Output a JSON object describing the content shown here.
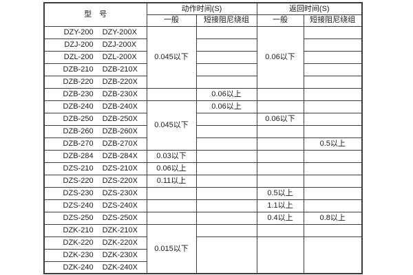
{
  "header": {
    "model": "型　号",
    "action": "动作时间(S)",
    "return": "返回时间(S)",
    "general": "一般",
    "short_damping": "短接阻尼绕组"
  },
  "colors": {
    "border": "#3a3a3a",
    "text": "#1a1a1a",
    "background": "#ffffff"
  },
  "table": {
    "col_names": {
      "ag": "cell-action-general",
      "as": "cell-action-damping",
      "rg": "cell-return-general",
      "rs_": "cell-return-damping"
    },
    "rows": [
      {
        "m": [
          "DZY-200",
          "DZY-200X"
        ],
        "c": [
          {
            "k": "ag",
            "t": "0.045以下",
            "rs": 5
          },
          {
            "k": "as",
            "t": ""
          },
          {
            "k": "rg",
            "t": "0.06以下",
            "rs": 5
          },
          {
            "k": "rs_",
            "t": ""
          }
        ]
      },
      {
        "m": [
          "DZJ-200",
          "DZJ-200X"
        ],
        "c": [
          {
            "k": "as",
            "t": ""
          },
          {
            "k": "rs_",
            "t": ""
          }
        ]
      },
      {
        "m": [
          "DZL-200",
          "DZL-200X"
        ],
        "c": [
          {
            "k": "as",
            "t": ""
          },
          {
            "k": "rs_",
            "t": ""
          }
        ]
      },
      {
        "m": [
          "DZB-210",
          "DZB-210X"
        ],
        "c": [
          {
            "k": "as",
            "t": ""
          },
          {
            "k": "rs_",
            "t": ""
          }
        ]
      },
      {
        "m": [
          "DZB-220",
          "DZB-220X"
        ],
        "c": [
          {
            "k": "as",
            "t": ""
          },
          {
            "k": "rs_",
            "t": ""
          }
        ]
      },
      {
        "m": [
          "DZB-230",
          "DZB-230X"
        ],
        "c": [
          {
            "k": "ag",
            "t": ""
          },
          {
            "k": "as",
            "t": "0.06以上"
          },
          {
            "k": "rg",
            "t": ""
          },
          {
            "k": "rs_",
            "t": ""
          }
        ]
      },
      {
        "m": [
          "DZB-240",
          "DZB-240X"
        ],
        "c": [
          {
            "k": "ag",
            "t": "0.045以下",
            "rs": 4
          },
          {
            "k": "as",
            "t": "0.06以上"
          },
          {
            "k": "rg",
            "t": ""
          },
          {
            "k": "rs_",
            "t": ""
          }
        ]
      },
      {
        "m": [
          "DZB-250",
          "DZB-250X"
        ],
        "c": [
          {
            "k": "as",
            "t": ""
          },
          {
            "k": "rg",
            "t": "0.06以下"
          },
          {
            "k": "rs_",
            "t": ""
          }
        ]
      },
      {
        "m": [
          "DZB-260",
          "DZB-260X"
        ],
        "c": [
          {
            "k": "as",
            "t": ""
          },
          {
            "k": "rg",
            "t": ""
          },
          {
            "k": "rs_",
            "t": ""
          }
        ]
      },
      {
        "m": [
          "DZB-270",
          "DZB-270X"
        ],
        "c": [
          {
            "k": "as",
            "t": ""
          },
          {
            "k": "rg",
            "t": ""
          },
          {
            "k": "rs_",
            "t": "0.5以上"
          }
        ]
      },
      {
        "m": [
          "DZB-284",
          "DZB-284X"
        ],
        "c": [
          {
            "k": "ag",
            "t": "0.03以下"
          },
          {
            "k": "as",
            "t": ""
          },
          {
            "k": "rg",
            "t": ""
          },
          {
            "k": "rs_",
            "t": ""
          }
        ]
      },
      {
        "m": [
          "DZS-210",
          "DZS-210X"
        ],
        "c": [
          {
            "k": "ag",
            "t": "0.06以上"
          },
          {
            "k": "as",
            "t": ""
          },
          {
            "k": "rg",
            "t": ""
          },
          {
            "k": "rs_",
            "t": ""
          }
        ]
      },
      {
        "m": [
          "DZS-220",
          "DZS-220X"
        ],
        "c": [
          {
            "k": "ag",
            "t": "0.11以上"
          },
          {
            "k": "as",
            "t": ""
          },
          {
            "k": "rg",
            "t": ""
          },
          {
            "k": "rs_",
            "t": ""
          }
        ]
      },
      {
        "m": [
          "DZS-230",
          "DZS-230X"
        ],
        "c": [
          {
            "k": "ag",
            "t": ""
          },
          {
            "k": "as",
            "t": ""
          },
          {
            "k": "rg",
            "t": "0.5以上"
          },
          {
            "k": "rs_",
            "t": ""
          }
        ]
      },
      {
        "m": [
          "DZS-240",
          "DZS-240X"
        ],
        "c": [
          {
            "k": "ag",
            "t": ""
          },
          {
            "k": "as",
            "t": ""
          },
          {
            "k": "rg",
            "t": "1.1以上"
          },
          {
            "k": "rs_",
            "t": ""
          }
        ]
      },
      {
        "m": [
          "DZS-250",
          "DZS-250X"
        ],
        "c": [
          {
            "k": "ag",
            "t": ""
          },
          {
            "k": "as",
            "t": ""
          },
          {
            "k": "rg",
            "t": "0.4以上"
          },
          {
            "k": "rs_",
            "t": "0.8以上"
          }
        ]
      },
      {
        "m": [
          "DZK-210",
          "DZK-210X"
        ],
        "c": [
          {
            "k": "ag",
            "t": "0.015以下",
            "rs": 4
          },
          {
            "k": "as",
            "t": ""
          },
          {
            "k": "rg",
            "t": ""
          },
          {
            "k": "rs_",
            "t": ""
          }
        ]
      },
      {
        "m": [
          "DZK-220",
          "DZK-220X"
        ],
        "c": [
          {
            "k": "as",
            "t": "",
            "rs": 3
          },
          {
            "k": "rg",
            "t": "",
            "rs": 3
          },
          {
            "k": "rs_",
            "t": "",
            "rs": 3
          }
        ]
      },
      {
        "m": [
          "DZK-230",
          "DZK-230X"
        ],
        "c": []
      },
      {
        "m": [
          "DZK-240",
          "DZK-240X"
        ],
        "c": []
      }
    ]
  }
}
